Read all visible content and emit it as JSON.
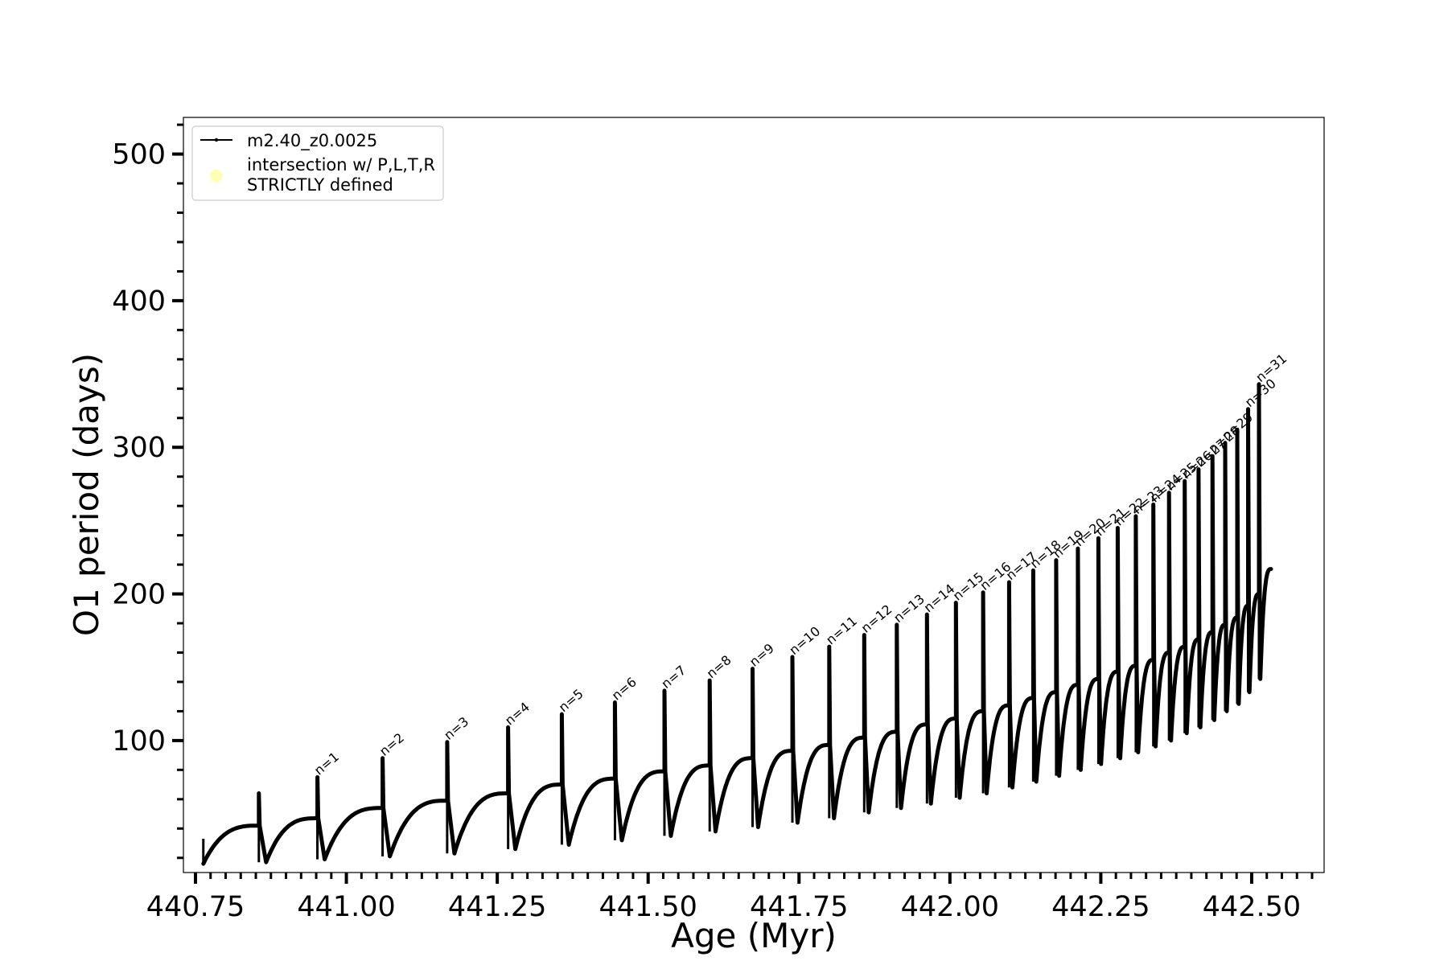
{
  "chart_data": {
    "type": "line",
    "title": "",
    "xlabel": "Age (Myr)",
    "ylabel": "O1 period (days)",
    "xlim": [
      440.73,
      442.62
    ],
    "ylim": [
      10,
      525
    ],
    "x_ticks": [
      440.75,
      441.0,
      441.25,
      441.5,
      441.75,
      442.0,
      442.25,
      442.5
    ],
    "x_tick_labels": [
      "440.75",
      "441.00",
      "441.25",
      "441.50",
      "441.75",
      "442.00",
      "442.25",
      "442.50"
    ],
    "x_minor_step": 0.025,
    "y_ticks": [
      100,
      200,
      300,
      400,
      500
    ],
    "y_tick_labels": [
      "100",
      "200",
      "300",
      "400",
      "500"
    ],
    "y_minor_step": 20,
    "grid": false,
    "legend": {
      "position": "top-left",
      "entries": [
        {
          "label": "m2.40_z0.0025",
          "marker": "line-with-dots",
          "color": "#000000"
        },
        {
          "label_lines": [
            "intersection w/ P,L,T,R",
            "STRICTLY defined"
          ],
          "marker": "circle",
          "color": "#ffffb3"
        }
      ]
    },
    "series": [
      {
        "name": "m2.40_z0.0025",
        "color": "#000000",
        "start": {
          "x": 440.763,
          "y": 18
        },
        "end": {
          "x": 442.532,
          "y": 217
        },
        "first_pulse": {
          "x": 440.763,
          "peak": 33,
          "trough": 16,
          "pre_value": 18
        },
        "pulses": [
          {
            "x": 440.855,
            "pre": 42,
            "peak": 64,
            "trough": 17
          },
          {
            "x": 440.952,
            "pre": 47,
            "peak": 75,
            "trough": 19
          },
          {
            "x": 441.06,
            "pre": 54,
            "peak": 88,
            "trough": 21
          },
          {
            "x": 441.167,
            "pre": 59,
            "peak": 99,
            "trough": 23
          },
          {
            "x": 441.268,
            "pre": 64,
            "peak": 109,
            "trough": 26
          },
          {
            "x": 441.357,
            "pre": 70,
            "peak": 118,
            "trough": 29
          },
          {
            "x": 441.445,
            "pre": 74,
            "peak": 126,
            "trough": 32
          },
          {
            "x": 441.527,
            "pre": 79,
            "peak": 134,
            "trough": 35
          },
          {
            "x": 441.602,
            "pre": 83,
            "peak": 141,
            "trough": 38
          },
          {
            "x": 441.673,
            "pre": 88,
            "peak": 149,
            "trough": 41
          },
          {
            "x": 441.739,
            "pre": 93,
            "peak": 157,
            "trough": 44
          },
          {
            "x": 441.8,
            "pre": 97,
            "peak": 164,
            "trough": 47
          },
          {
            "x": 441.858,
            "pre": 102,
            "peak": 172,
            "trough": 51
          },
          {
            "x": 441.912,
            "pre": 106,
            "peak": 179,
            "trough": 54
          },
          {
            "x": 441.962,
            "pre": 111,
            "peak": 186,
            "trough": 57
          },
          {
            "x": 442.01,
            "pre": 115,
            "peak": 194,
            "trough": 61
          },
          {
            "x": 442.055,
            "pre": 120,
            "peak": 201,
            "trough": 64
          },
          {
            "x": 442.098,
            "pre": 124,
            "peak": 208,
            "trough": 68
          },
          {
            "x": 442.138,
            "pre": 129,
            "peak": 216,
            "trough": 72
          },
          {
            "x": 442.176,
            "pre": 133,
            "peak": 223,
            "trough": 76
          },
          {
            "x": 442.212,
            "pre": 138,
            "peak": 231,
            "trough": 80
          },
          {
            "x": 442.246,
            "pre": 142,
            "peak": 238,
            "trough": 84
          },
          {
            "x": 442.278,
            "pre": 147,
            "peak": 245,
            "trough": 88
          },
          {
            "x": 442.308,
            "pre": 151,
            "peak": 253,
            "trough": 92
          },
          {
            "x": 442.337,
            "pre": 155,
            "peak": 261,
            "trough": 96
          },
          {
            "x": 442.363,
            "pre": 160,
            "peak": 269,
            "trough": 100
          },
          {
            "x": 442.389,
            "pre": 164,
            "peak": 277,
            "trough": 105
          },
          {
            "x": 442.412,
            "pre": 169,
            "peak": 285,
            "trough": 109
          },
          {
            "x": 442.435,
            "pre": 174,
            "peak": 294,
            "trough": 114
          },
          {
            "x": 442.456,
            "pre": 179,
            "peak": 303,
            "trough": 120
          },
          {
            "x": 442.476,
            "pre": 184,
            "peak": 312,
            "trough": 125
          },
          {
            "x": 442.494,
            "pre": 192,
            "peak": 326,
            "trough": 133
          },
          {
            "x": 442.512,
            "pre": 200,
            "peak": 343,
            "trough": 142
          }
        ]
      }
    ],
    "annotations": [
      {
        "text": "n=1",
        "x": 440.952,
        "y": 75
      },
      {
        "text": "n=2",
        "x": 441.06,
        "y": 88
      },
      {
        "text": "n=3",
        "x": 441.167,
        "y": 99
      },
      {
        "text": "n=4",
        "x": 441.268,
        "y": 109
      },
      {
        "text": "n=5",
        "x": 441.357,
        "y": 118
      },
      {
        "text": "n=6",
        "x": 441.445,
        "y": 126
      },
      {
        "text": "n=7",
        "x": 441.527,
        "y": 134
      },
      {
        "text": "n=8",
        "x": 441.602,
        "y": 141
      },
      {
        "text": "n=9",
        "x": 441.673,
        "y": 149
      },
      {
        "text": "n=10",
        "x": 441.739,
        "y": 157
      },
      {
        "text": "n=11",
        "x": 441.8,
        "y": 164
      },
      {
        "text": "n=12",
        "x": 441.858,
        "y": 172
      },
      {
        "text": "n=13",
        "x": 441.912,
        "y": 179
      },
      {
        "text": "n=14",
        "x": 441.962,
        "y": 186
      },
      {
        "text": "n=15",
        "x": 442.01,
        "y": 194
      },
      {
        "text": "n=16",
        "x": 442.055,
        "y": 201
      },
      {
        "text": "n=17",
        "x": 442.098,
        "y": 208
      },
      {
        "text": "n=18",
        "x": 442.138,
        "y": 216
      },
      {
        "text": "n=19",
        "x": 442.176,
        "y": 223
      },
      {
        "text": "n=20",
        "x": 442.212,
        "y": 231
      },
      {
        "text": "n=21",
        "x": 442.246,
        "y": 238
      },
      {
        "text": "n=22",
        "x": 442.278,
        "y": 245
      },
      {
        "text": "n=23",
        "x": 442.308,
        "y": 253
      },
      {
        "text": "n=24",
        "x": 442.337,
        "y": 261
      },
      {
        "text": "n=25",
        "x": 442.363,
        "y": 269
      },
      {
        "text": "n=26",
        "x": 442.389,
        "y": 277
      },
      {
        "text": "n=27",
        "x": 442.412,
        "y": 285
      },
      {
        "text": "n=28",
        "x": 442.435,
        "y": 294
      },
      {
        "text": "n=29",
        "x": 442.456,
        "y": 303
      },
      {
        "text": "n=30",
        "x": 442.494,
        "y": 326
      },
      {
        "text": "n=31",
        "x": 442.512,
        "y": 343
      }
    ]
  }
}
